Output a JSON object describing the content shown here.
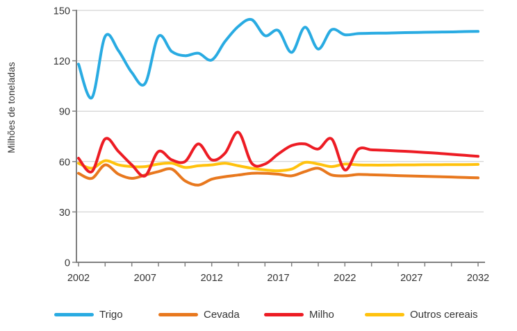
{
  "chart_data": {
    "type": "line",
    "title": "",
    "xlabel": "",
    "ylabel": "Milhões de toneladas",
    "unit": "Milhões de toneladas",
    "grid": "horizontal",
    "legend_position": "bottom",
    "ylim": [
      0,
      150
    ],
    "y_ticks": [
      0,
      30,
      60,
      90,
      120,
      150
    ],
    "x_major_ticks": [
      2002,
      2007,
      2012,
      2017,
      2022,
      2027,
      2032
    ],
    "x_minor_step": 2,
    "x_range": [
      2002,
      2032
    ],
    "x": [
      2002,
      2003,
      2004,
      2005,
      2006,
      2007,
      2008,
      2009,
      2010,
      2011,
      2012,
      2013,
      2014,
      2015,
      2016,
      2017,
      2018,
      2019,
      2020,
      2021,
      2022,
      2023,
      2024,
      2025,
      2026,
      2027,
      2028,
      2029,
      2030,
      2031,
      2032
    ],
    "z_order": [
      0,
      1,
      3,
      2
    ],
    "colors": {
      "grid": "#c9c9c9",
      "axis": "#7f7f7f",
      "text": "#333333",
      "background": "#ffffff"
    },
    "series": [
      {
        "name": "Trigo",
        "color": "#29abe2",
        "values": [
          118,
          98,
          134.5,
          126,
          113,
          106.5,
          134.5,
          125.5,
          123,
          124.5,
          120.5,
          131.5,
          140.5,
          144.5,
          135,
          138,
          125,
          140,
          127,
          138.5,
          135.5,
          136.2,
          136.4,
          136.5,
          136.7,
          136.8,
          137,
          137.1,
          137.2,
          137.4,
          137.5
        ]
      },
      {
        "name": "Cevada",
        "color": "#e8781e",
        "values": [
          53,
          50,
          58,
          52.5,
          50,
          52,
          54,
          55.5,
          48.5,
          46,
          49.5,
          51,
          52,
          53,
          53,
          52.5,
          51.5,
          54,
          56,
          52,
          51.5,
          52.3,
          52.1,
          51.9,
          51.6,
          51.4,
          51.2,
          51,
          50.8,
          50.5,
          50.3
        ]
      },
      {
        "name": "Milho",
        "color": "#ed1c24",
        "values": [
          62,
          54,
          73.5,
          66,
          58,
          51.5,
          66,
          61,
          60,
          70.5,
          61,
          65,
          77.5,
          59,
          58.5,
          64.5,
          69.5,
          70.5,
          67.5,
          73.5,
          55,
          67.3,
          67,
          66.7,
          66.3,
          65.9,
          65.4,
          64.9,
          64.3,
          63.7,
          63.1
        ]
      },
      {
        "name": "Outros cereais",
        "color": "#ffc20e",
        "values": [
          59,
          56,
          60.5,
          58,
          57,
          57,
          58.5,
          59,
          56.5,
          57.5,
          58,
          59,
          57.5,
          56,
          55,
          54.5,
          55.5,
          59.5,
          58.5,
          57,
          58.5,
          58,
          57.9,
          57.9,
          58,
          58,
          58.1,
          58.1,
          58.2,
          58.2,
          58.3
        ]
      }
    ]
  }
}
